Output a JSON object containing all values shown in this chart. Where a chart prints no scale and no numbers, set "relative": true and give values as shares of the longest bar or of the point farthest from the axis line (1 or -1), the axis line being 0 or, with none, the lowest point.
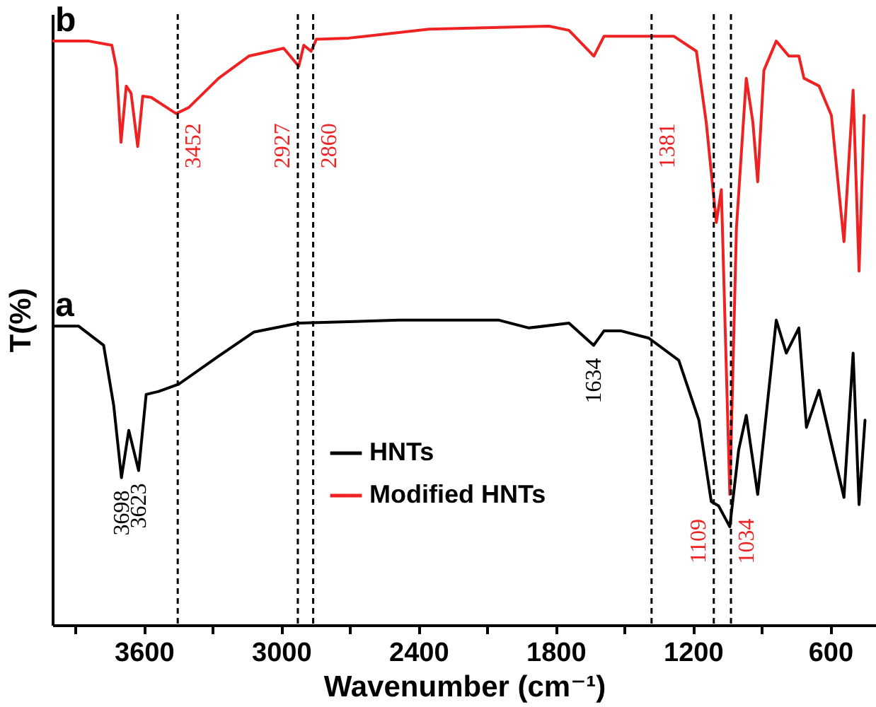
{
  "chart_data": {
    "type": "line",
    "relative": true,
    "xlabel": "Wavenumber (cm⁻¹)",
    "ylabel": "T(%)",
    "xlim": [
      4000,
      400
    ],
    "xticks": [
      {
        "value": 3900,
        "label": null
      },
      3600,
      {
        "value": 3300,
        "label": null
      },
      3000,
      {
        "value": 2700,
        "label": null
      },
      2400,
      {
        "value": 2100,
        "label": null
      },
      1800,
      {
        "value": 1500,
        "label": null
      },
      1200,
      {
        "value": 900,
        "label": null
      },
      600
    ],
    "grid": false,
    "legend": "bottom",
    "line_style": "solid",
    "x": [
      4000,
      3885,
      3776,
      3732,
      3698,
      3666,
      3623,
      3590,
      3535,
      3448,
      3273,
      3120,
      2923,
      2485,
      2048,
      1917,
      1742,
      1634,
      1589,
      1513,
      1393,
      1262,
      1174,
      1120,
      1088,
      1039,
      1000,
      967,
      917,
      836,
      792,
      737,
      704,
      649,
      540,
      500,
      474,
      448
    ],
    "series": [
      {
        "name": "HNTs",
        "color": "#000000",
        "values": [
          0.499,
          0.499,
          0.467,
          0.367,
          0.246,
          0.325,
          0.258,
          0.385,
          0.39,
          0.402,
          0.449,
          0.489,
          0.504,
          0.509,
          0.509,
          0.496,
          0.504,
          0.467,
          0.491,
          0.491,
          0.479,
          0.442,
          0.342,
          0.206,
          0.199,
          0.164,
          0.293,
          0.35,
          0.218,
          0.509,
          0.454,
          0.496,
          0.33,
          0.392,
          0.213,
          0.454,
          0.201,
          0.342
        ]
      },
      {
        "name": "Modified HNTs",
        "color": "#ee2222",
        "x": [
          4000,
          3840,
          3740,
          3720,
          3700,
          3677,
          3656,
          3627,
          3605,
          3568,
          3459,
          3404,
          3273,
          3141,
          2989,
          2923,
          2901,
          2869,
          2846,
          2705,
          2354,
          1829,
          1742,
          1633,
          1589,
          1480,
          1283,
          1185,
          1142,
          1098,
          1076,
          1039,
          1010,
          967,
          938,
          917,
          890,
          836,
          781,
          737,
          715,
          649,
          595,
          540,
          500,
          474,
          452
        ],
        "values": [
          0.975,
          0.975,
          0.968,
          0.93,
          0.806,
          0.9,
          0.888,
          0.799,
          0.883,
          0.881,
          0.854,
          0.864,
          0.913,
          0.95,
          0.963,
          0.933,
          0.968,
          0.958,
          0.978,
          0.98,
          0.995,
          1,
          0.993,
          0.95,
          0.983,
          0.983,
          0.983,
          0.958,
          0.839,
          0.672,
          0.727,
          0.218,
          0.663,
          0.913,
          0.839,
          0.74,
          0.926,
          0.975,
          0.95,
          0.95,
          0.913,
          0.9,
          0.851,
          0.64,
          0.893,
          0.591,
          0.851
        ]
      }
    ],
    "ref_lines": [
      {
        "axis": "x",
        "value": 3452,
        "color": "#000000",
        "line_style": "dashed"
      },
      {
        "axis": "x",
        "value": 2927,
        "color": "#000000",
        "line_style": "dashed"
      },
      {
        "axis": "x",
        "value": 2860,
        "color": "#000000",
        "line_style": "dashed"
      },
      {
        "axis": "x",
        "value": 1381,
        "color": "#000000",
        "line_style": "dashed"
      },
      {
        "axis": "x",
        "value": 1109,
        "color": "#000000",
        "line_style": "dashed"
      },
      {
        "axis": "x",
        "value": 1034,
        "color": "#000000",
        "line_style": "dashed"
      }
    ],
    "annotations": [
      "a",
      "b",
      {
        "text": "3452",
        "x": 3452,
        "y": 0.8
      },
      {
        "text": "2927",
        "x": 2927,
        "y": 0.8
      },
      {
        "text": "2860",
        "x": 2860,
        "y": 0.8
      },
      {
        "text": "1381",
        "x": 1381,
        "y": 0.8
      },
      {
        "text": "1109",
        "x": 1109,
        "y": 0.14
      },
      {
        "text": "1034",
        "x": 1034,
        "y": 0.14
      },
      {
        "text": "3698",
        "x": 3698,
        "y": 0.246
      },
      {
        "text": "3623",
        "x": 3623,
        "y": 0.258
      },
      {
        "text": "1634",
        "x": 1634,
        "y": 0.467
      }
    ]
  }
}
